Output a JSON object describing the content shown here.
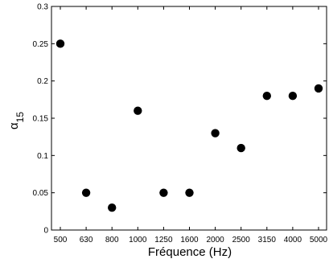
{
  "chart_data": {
    "type": "scatter",
    "title": "",
    "xlabel": "Fréquence (Hz)",
    "ylabel": "α",
    "ylabel_subscript": "15",
    "x_scale": "categorical",
    "categories": [
      "500",
      "630",
      "800",
      "1000",
      "1250",
      "1600",
      "2000",
      "2500",
      "3150",
      "4000",
      "5000"
    ],
    "values": [
      0.25,
      0.05,
      0.03,
      0.16,
      0.05,
      0.05,
      0.13,
      0.11,
      0.18,
      0.18,
      0.19
    ],
    "ylim": [
      0,
      0.3
    ],
    "yticks": [
      0,
      0.05,
      0.1,
      0.15,
      0.2,
      0.25,
      0.3
    ],
    "ytick_labels": [
      "0",
      "0.05",
      "0.1",
      "0.15",
      "0.2",
      "0.25",
      "0.3"
    ],
    "grid": false,
    "legend": "none",
    "marker_color": "#000000"
  }
}
